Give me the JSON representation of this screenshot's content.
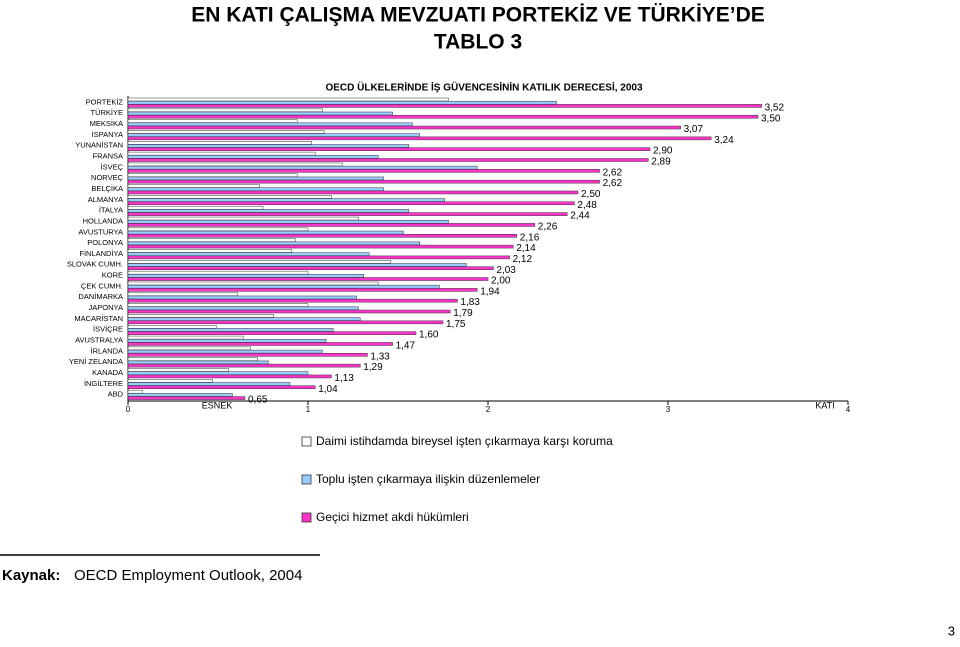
{
  "header": {
    "title": "EN KATI ÇALIŞMA MEVZUATI PORTEKİZ VE TÜRKİYE’DE",
    "subtitle": "TABLO 3"
  },
  "chart_data": {
    "type": "hbar",
    "title": "OECD ÜLKELERİNDE İŞ GÜVENCESİNİN KATILIK DERECESİ, 2003",
    "categories": [
      "PORTEKİZ",
      "TÜRKİYE",
      "MEKSİKA",
      "İSPANYA",
      "YUNANİSTAN",
      "FRANSA",
      "İSVEÇ",
      "NORVEÇ",
      "BELÇİKA",
      "ALMANYA",
      "İTALYA",
      "HOLLANDA",
      "AVUSTURYA",
      "POLONYA",
      "FİNLANDİYA",
      "SLOVAK CUMH.",
      "KORE",
      "ÇEK CUMH.",
      "DANİMARKA",
      "JAPONYA",
      "MACARİSTAN",
      "İSVİÇRE",
      "AVUSTRALYA",
      "İRLANDA",
      "YENİ ZELANDA",
      "KANADA",
      "İNGİLTERE",
      "ABD"
    ],
    "series": [
      {
        "name": "Daimi istihdamda bireysel işten çıkarmaya karşı koruma",
        "color": "#ffffff",
        "values": [
          1.78,
          1.08,
          0.94,
          1.09,
          1.02,
          1.04,
          1.19,
          0.94,
          0.73,
          1.13,
          0.75,
          1.28,
          1.0,
          0.93,
          0.91,
          1.46,
          1.0,
          1.39,
          0.61,
          1.0,
          0.81,
          0.49,
          0.64,
          0.68,
          0.72,
          0.56,
          0.47,
          0.08
        ]
      },
      {
        "name": "Toplu işten çıkarmaya ilişkin düzenlemeler",
        "color": "#99ccff",
        "values": [
          2.38,
          1.47,
          1.58,
          1.62,
          1.56,
          1.39,
          1.94,
          1.42,
          1.42,
          1.76,
          1.56,
          1.78,
          1.53,
          1.62,
          1.34,
          1.88,
          1.31,
          1.73,
          1.27,
          1.28,
          1.29,
          1.14,
          1.1,
          1.08,
          0.78,
          1.0,
          0.9,
          0.58
        ]
      },
      {
        "name": "Geçici hizmet akdi hükümleri",
        "color": "#ff33cc",
        "values": [
          3.52,
          3.5,
          3.07,
          3.24,
          2.9,
          2.89,
          2.62,
          2.62,
          2.5,
          2.48,
          2.44,
          2.26,
          2.16,
          2.14,
          2.12,
          2.03,
          2.0,
          1.94,
          1.83,
          1.79,
          1.75,
          1.6,
          1.47,
          1.33,
          1.29,
          1.13,
          1.04,
          0.65
        ],
        "value_labels": [
          "3,52",
          "3,50",
          "3,07",
          "3,24",
          "2,90",
          "2,89",
          "2,62",
          "2,62",
          "2,50",
          "2,48",
          "2,44",
          "2,26",
          "2,16",
          "2,14",
          "2,12",
          "2,03",
          "2,00",
          "1,94",
          "1,83",
          "1,79",
          "1,75",
          "1,60",
          "1,47",
          "1,33",
          "1,29",
          "1,13",
          "1,04",
          "0,65"
        ]
      }
    ],
    "xlim": [
      0,
      4
    ],
    "xticks": [
      0,
      1,
      2,
      3,
      4
    ],
    "annotations": [
      "ESNEK",
      "KATI"
    ]
  },
  "source": {
    "label": "Kaynak:",
    "text": "OECD Employment Outlook, 2004"
  },
  "page_number": "3"
}
